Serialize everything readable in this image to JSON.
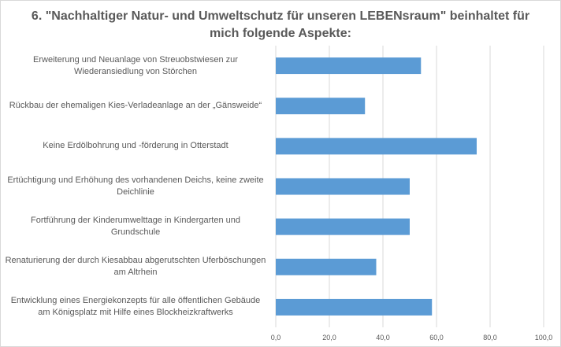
{
  "chart_data": {
    "type": "bar",
    "orientation": "horizontal",
    "title_lines": [
      "6. \"Nachhaltiger Natur- und Umweltschutz für unseren LEBENsraum\" beinhaltet für",
      "mich folgende Aspekte:"
    ],
    "categories": [
      [
        "Erweiterung und Neuanlage von Streuobstwiesen zur",
        "Wiederansiedlung von Störchen"
      ],
      [
        "Rückbau der ehemaligen Kies-Verladeanlage an der „Gänsweide“"
      ],
      [
        "Keine Erdölbohrung und -förderung in Otterstadt"
      ],
      [
        "Ertüchtigung und Erhöhung des vorhandenen Deichs, keine zweite",
        "Deichlinie"
      ],
      [
        "Fortführung der Kinderumwelttage in Kindergarten und",
        "Grundschule"
      ],
      [
        "Renaturierung der durch Kiesabbau abgerutschten Uferböschungen",
        "am Altrhein"
      ],
      [
        "Entwicklung eines Energiekonzepts für alle öffentlichen Gebäude",
        "am Königsplatz mit Hilfe eines Blockheizkraftwerks"
      ]
    ],
    "values": [
      54.2,
      33.3,
      75.0,
      50.0,
      50.0,
      37.5,
      58.3
    ],
    "xlim": [
      0,
      100
    ],
    "xticks": [
      0,
      20,
      40,
      60,
      80,
      100
    ],
    "xtick_labels": [
      "0,0",
      "20,0",
      "40,0",
      "60,0",
      "80,0",
      "100,0"
    ],
    "grid": "vertical",
    "bar_color": "#5b9bd5",
    "grid_color": "#d9d9d9",
    "text_color": "#595959"
  }
}
